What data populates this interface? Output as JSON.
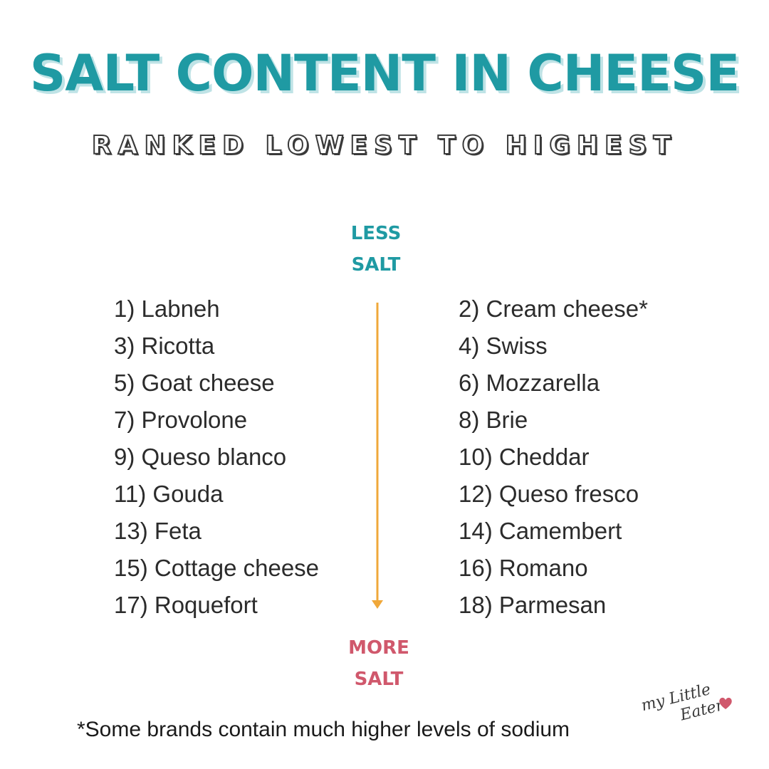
{
  "header": {
    "title": "SALT CONTENT IN CHEESE",
    "subtitle": "RANKED LOWEST TO HIGHEST"
  },
  "scale": {
    "top_label_line1": "LESS",
    "top_label_line2": "SALT",
    "bottom_label_line1": "MORE",
    "bottom_label_line2": "SALT",
    "arrow_color": "#f0a83a",
    "less_color": "#1f9aa3",
    "more_color": "#d0586c"
  },
  "rankings": {
    "left": [
      "1) Labneh",
      "3) Ricotta",
      "5) Goat cheese",
      "7) Provolone",
      "9) Queso blanco",
      "11) Gouda",
      "13) Feta",
      "15) Cottage cheese",
      "17) Roquefort"
    ],
    "right": [
      "2) Cream cheese*",
      "4) Swiss",
      "6) Mozzarella",
      "8) Brie",
      "10) Cheddar",
      "12) Queso fresco",
      "14) Camembert",
      "16) Romano",
      "18) Parmesan"
    ]
  },
  "footnote": "*Some brands contain much higher levels of sodium",
  "logo": {
    "line1": "my Little",
    "line2": "Eater",
    "icon": "heart-icon",
    "accent": "#d0586c"
  },
  "colors": {
    "title": "#1f9aa3",
    "title_shadow": "#bfe3e6",
    "text": "#2b2b2b"
  }
}
